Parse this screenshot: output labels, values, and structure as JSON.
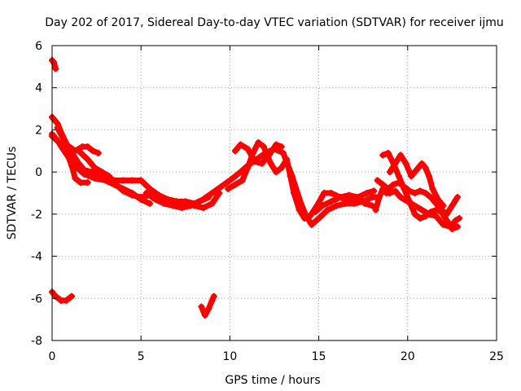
{
  "chart_data": {
    "type": "scatter",
    "title": "Day 202 of 2017, Sidereal Day-to-day VTEC variation (SDTVAR) for receiver ijmu",
    "xlabel": "GPS time / hours",
    "ylabel": "SDTVAR / TECUs",
    "xlim": [
      0,
      25
    ],
    "ylim": [
      -8,
      6
    ],
    "xticks": [
      0,
      5,
      10,
      15,
      20,
      25
    ],
    "yticks": [
      -8,
      -6,
      -4,
      -2,
      0,
      2,
      4,
      6
    ],
    "grid": true,
    "marker": "plus",
    "color": "#ff0000",
    "series": [
      {
        "name": "s1",
        "points": [
          [
            0.0,
            5.3
          ],
          [
            0.1,
            5.2
          ],
          [
            0.2,
            4.9
          ]
        ]
      },
      {
        "name": "s2",
        "points": [
          [
            0.0,
            -5.7
          ],
          [
            0.2,
            -5.9
          ],
          [
            0.5,
            -6.1
          ],
          [
            0.8,
            -6.1
          ],
          [
            1.1,
            -5.9
          ]
        ]
      },
      {
        "name": "s3",
        "points": [
          [
            8.4,
            -6.4
          ],
          [
            8.6,
            -6.8
          ],
          [
            8.8,
            -6.5
          ],
          [
            9.0,
            -6.1
          ],
          [
            9.1,
            -5.9
          ]
        ]
      },
      {
        "name": "s4",
        "points": [
          [
            0.0,
            2.6
          ],
          [
            0.3,
            2.3
          ],
          [
            0.6,
            1.7
          ],
          [
            0.9,
            1.2
          ],
          [
            1.2,
            0.8
          ],
          [
            1.5,
            0.4
          ],
          [
            1.8,
            0.1
          ],
          [
            2.2,
            0.0
          ],
          [
            2.6,
            -0.2
          ],
          [
            3.0,
            -0.3
          ],
          [
            3.5,
            -0.4
          ],
          [
            4.0,
            -0.4
          ],
          [
            4.5,
            -0.4
          ],
          [
            5.0,
            -0.4
          ],
          [
            5.5,
            -0.8
          ],
          [
            6.0,
            -1.1
          ],
          [
            6.5,
            -1.3
          ],
          [
            7.0,
            -1.4
          ],
          [
            7.5,
            -1.4
          ],
          [
            8.0,
            -1.5
          ],
          [
            8.5,
            -1.3
          ],
          [
            9.0,
            -1.0
          ],
          [
            9.5,
            -0.7
          ],
          [
            10.0,
            -0.4
          ],
          [
            10.3,
            -0.2
          ],
          [
            10.6,
            0.0
          ],
          [
            11.0,
            0.3
          ],
          [
            11.5,
            0.6
          ],
          [
            12.0,
            0.9
          ],
          [
            12.5,
            1.1
          ],
          [
            13.0,
            0.9
          ],
          [
            13.5,
            -0.2
          ],
          [
            14.0,
            -1.5
          ],
          [
            14.3,
            -2.1
          ],
          [
            14.6,
            -2.5
          ],
          [
            15.0,
            -2.2
          ],
          [
            15.5,
            -1.8
          ],
          [
            16.0,
            -1.6
          ],
          [
            16.5,
            -1.5
          ],
          [
            17.0,
            -1.5
          ],
          [
            17.5,
            -1.4
          ],
          [
            18.0,
            -1.2
          ],
          [
            18.2,
            -1.2
          ]
        ]
      },
      {
        "name": "s5",
        "points": [
          [
            0.0,
            1.8
          ],
          [
            0.3,
            1.5
          ],
          [
            0.6,
            1.1
          ],
          [
            1.0,
            0.6
          ],
          [
            1.4,
            0.2
          ],
          [
            1.8,
            -0.1
          ],
          [
            2.4,
            -0.3
          ],
          [
            3.0,
            -0.4
          ],
          [
            3.5,
            -0.6
          ],
          [
            4.0,
            -0.8
          ],
          [
            4.5,
            -1.0
          ],
          [
            5.0,
            -1.3
          ],
          [
            5.5,
            -1.5
          ]
        ]
      },
      {
        "name": "s6",
        "points": [
          [
            0.0,
            1.7
          ],
          [
            0.4,
            1.4
          ],
          [
            0.8,
            1.0
          ],
          [
            1.1,
            0.3
          ],
          [
            1.3,
            -0.3
          ],
          [
            1.6,
            -0.5
          ],
          [
            2.0,
            -0.5
          ]
        ]
      },
      {
        "name": "s7",
        "points": [
          [
            0.3,
            2.1
          ],
          [
            0.8,
            1.3
          ],
          [
            1.3,
            1.0
          ],
          [
            1.7,
            1.2
          ],
          [
            2.0,
            1.2
          ],
          [
            2.3,
            1.0
          ],
          [
            2.6,
            0.9
          ]
        ]
      },
      {
        "name": "s8",
        "points": [
          [
            1.5,
            1.0
          ],
          [
            2.0,
            0.6
          ],
          [
            2.4,
            0.2
          ],
          [
            2.8,
            0.0
          ],
          [
            3.2,
            -0.2
          ],
          [
            3.6,
            -0.6
          ],
          [
            4.0,
            -0.9
          ],
          [
            4.5,
            -1.1
          ],
          [
            5.0,
            -1.2
          ],
          [
            5.5,
            -1.1
          ],
          [
            6.0,
            -1.2
          ],
          [
            6.5,
            -1.3
          ],
          [
            7.0,
            -1.4
          ],
          [
            7.5,
            -1.5
          ],
          [
            8.0,
            -1.6
          ],
          [
            8.5,
            -1.7
          ],
          [
            9.0,
            -1.5
          ],
          [
            9.4,
            -1.0
          ]
        ]
      },
      {
        "name": "s9",
        "points": [
          [
            5.3,
            -1.0
          ],
          [
            5.8,
            -1.3
          ],
          [
            6.3,
            -1.5
          ],
          [
            6.8,
            -1.6
          ],
          [
            7.3,
            -1.7
          ],
          [
            7.8,
            -1.6
          ],
          [
            8.3,
            -1.4
          ],
          [
            8.8,
            -1.2
          ]
        ]
      },
      {
        "name": "s10",
        "points": [
          [
            9.9,
            -0.8
          ],
          [
            10.3,
            -0.6
          ],
          [
            10.7,
            -0.4
          ],
          [
            11.0,
            0.2
          ],
          [
            11.3,
            0.9
          ],
          [
            11.6,
            1.4
          ],
          [
            11.9,
            1.2
          ],
          [
            12.3,
            0.4
          ],
          [
            12.6,
            0.0
          ],
          [
            12.9,
            0.2
          ],
          [
            13.2,
            0.6
          ],
          [
            13.4,
            -0.2
          ],
          [
            13.6,
            -1.0
          ],
          [
            13.9,
            -1.8
          ],
          [
            14.2,
            -2.2
          ],
          [
            14.5,
            -2.1
          ],
          [
            14.9,
            -1.6
          ],
          [
            15.3,
            -1.0
          ],
          [
            15.7,
            -1.0
          ],
          [
            16.2,
            -1.2
          ],
          [
            16.7,
            -1.4
          ],
          [
            17.2,
            -1.2
          ],
          [
            17.7,
            -1.0
          ],
          [
            18.1,
            -0.9
          ]
        ]
      },
      {
        "name": "s11",
        "points": [
          [
            10.3,
            1.0
          ],
          [
            10.6,
            1.3
          ],
          [
            11.0,
            1.1
          ],
          [
            11.4,
            0.5
          ],
          [
            11.8,
            0.4
          ],
          [
            12.2,
            0.8
          ],
          [
            12.6,
            1.3
          ],
          [
            12.9,
            1.2
          ]
        ]
      },
      {
        "name": "s12",
        "points": [
          [
            14.8,
            -1.9
          ],
          [
            15.2,
            -1.6
          ],
          [
            15.7,
            -1.4
          ],
          [
            16.2,
            -1.2
          ],
          [
            16.7,
            -1.1
          ],
          [
            17.2,
            -1.2
          ],
          [
            17.6,
            -1.5
          ],
          [
            18.0,
            -1.6
          ]
        ]
      },
      {
        "name": "s13",
        "points": [
          [
            18.2,
            -1.8
          ],
          [
            18.4,
            -1.2
          ],
          [
            18.6,
            -0.8
          ],
          [
            18.8,
            -1.0
          ],
          [
            19.0,
            -1.0
          ],
          [
            19.3,
            -0.9
          ],
          [
            19.6,
            -1.2
          ],
          [
            20.0,
            -1.4
          ],
          [
            20.4,
            -1.6
          ],
          [
            20.8,
            -1.8
          ],
          [
            21.2,
            -2.0
          ],
          [
            21.6,
            -2.1
          ],
          [
            22.0,
            -2.5
          ],
          [
            22.4,
            -2.6
          ],
          [
            22.7,
            -2.3
          ],
          [
            22.9,
            -2.2
          ]
        ]
      },
      {
        "name": "s14",
        "points": [
          [
            18.6,
            0.8
          ],
          [
            18.9,
            0.9
          ],
          [
            19.2,
            0.4
          ],
          [
            19.5,
            -0.2
          ],
          [
            19.8,
            -0.8
          ],
          [
            20.1,
            -1.4
          ],
          [
            20.4,
            -2.0
          ],
          [
            20.7,
            -2.2
          ],
          [
            21.0,
            -2.1
          ],
          [
            21.3,
            -1.9
          ],
          [
            21.6,
            -1.8
          ],
          [
            21.9,
            -1.9
          ],
          [
            22.2,
            -2.3
          ],
          [
            22.5,
            -2.7
          ],
          [
            22.8,
            -2.6
          ]
        ]
      },
      {
        "name": "s15",
        "points": [
          [
            18.3,
            -0.4
          ],
          [
            18.6,
            -0.6
          ],
          [
            18.9,
            -0.8
          ],
          [
            19.2,
            -0.6
          ],
          [
            19.5,
            -0.5
          ],
          [
            19.8,
            -0.7
          ],
          [
            20.1,
            -0.9
          ],
          [
            20.4,
            -1.0
          ],
          [
            20.7,
            -0.9
          ],
          [
            21.0,
            -1.0
          ],
          [
            21.3,
            -1.2
          ],
          [
            21.6,
            -1.5
          ],
          [
            21.9,
            -1.8
          ],
          [
            22.2,
            -2.0
          ],
          [
            22.5,
            -1.6
          ],
          [
            22.8,
            -1.2
          ]
        ]
      },
      {
        "name": "s16",
        "points": [
          [
            19.0,
            0.0
          ],
          [
            19.3,
            0.4
          ],
          [
            19.6,
            0.8
          ],
          [
            19.9,
            0.4
          ],
          [
            20.2,
            -0.2
          ],
          [
            20.5,
            0.1
          ],
          [
            20.8,
            0.4
          ],
          [
            21.0,
            0.2
          ],
          [
            21.2,
            -0.2
          ],
          [
            21.4,
            -0.8
          ],
          [
            21.7,
            -1.3
          ],
          [
            22.0,
            -1.6
          ]
        ]
      }
    ]
  }
}
